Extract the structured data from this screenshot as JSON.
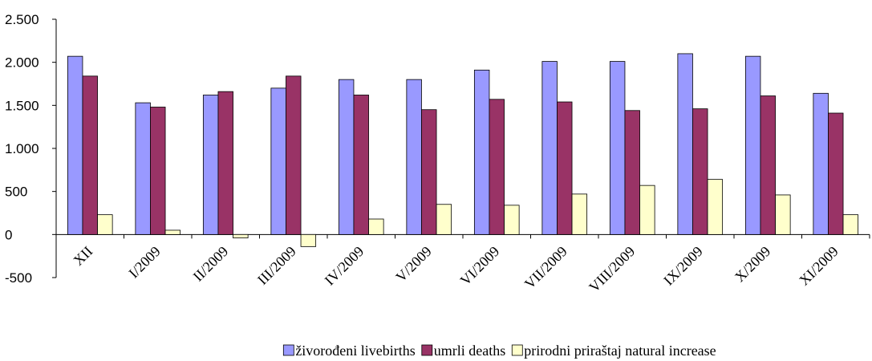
{
  "chart_data": {
    "type": "bar",
    "categories": [
      "XII",
      "I/2009",
      "II/2009",
      "III/2009",
      "IV/2009",
      "V/2009",
      "VI/2009",
      "VII/2009",
      "VIII/2009",
      "IX/2009",
      "X/2009",
      "XI/2009"
    ],
    "series": [
      {
        "name": "živorođeni livebirths",
        "color": "#9999ff",
        "values": [
          2070,
          1530,
          1620,
          1700,
          1800,
          1800,
          1910,
          2010,
          2010,
          2100,
          2070,
          1640
        ]
      },
      {
        "name": "umrli deaths",
        "color": "#993366",
        "values": [
          1840,
          1480,
          1660,
          1840,
          1620,
          1450,
          1570,
          1540,
          1440,
          1460,
          1610,
          1410
        ]
      },
      {
        "name": "prirodni priraštaj natural increase",
        "color": "#ffffcc",
        "values": [
          230,
          50,
          -40,
          -140,
          180,
          350,
          340,
          470,
          570,
          640,
          460,
          230
        ]
      }
    ],
    "ylim": [
      -500,
      2500
    ],
    "yticks": [
      {
        "value": -500,
        "label": "-500"
      },
      0,
      500,
      {
        "value": 1000,
        "label": "1.000"
      },
      {
        "value": 1500,
        "label": "1.500"
      },
      {
        "value": 2000,
        "label": "2.000"
      },
      {
        "value": 2500,
        "label": "2.500"
      }
    ],
    "legend": "bottom"
  }
}
